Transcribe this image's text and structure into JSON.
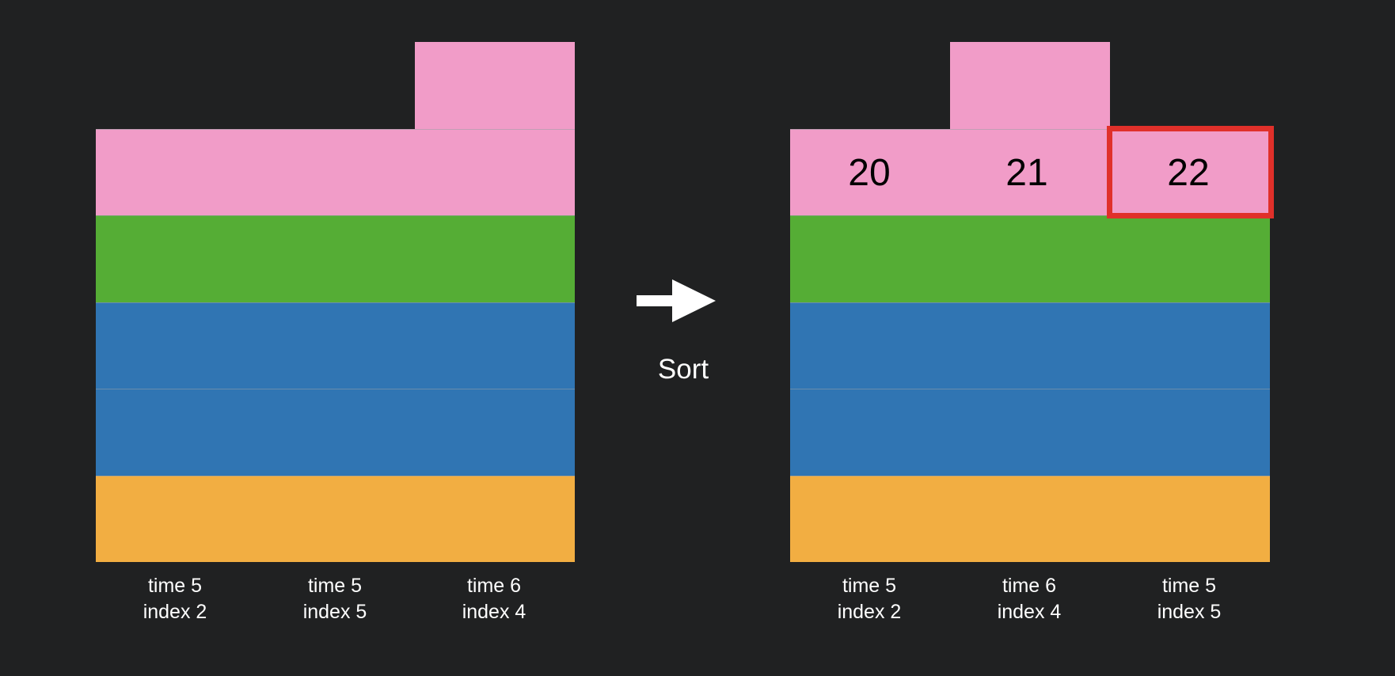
{
  "colors": {
    "background": "#202122",
    "pink": "#f19cc8",
    "green": "#55ad35",
    "blue": "#3075b3",
    "orange": "#f2ae42",
    "highlight": "#e0302a"
  },
  "left_panel": {
    "columns": [
      {
        "time": "time 5",
        "index": "index 2"
      },
      {
        "time": "time 5",
        "index": "index 5"
      },
      {
        "time": "time 6",
        "index": "index 4"
      }
    ]
  },
  "arrow": {
    "label": "Sort",
    "icon": "right-arrow-icon"
  },
  "right_panel": {
    "cell_numbers": [
      "20",
      "21",
      "22"
    ],
    "highlighted": "22",
    "columns": [
      {
        "time": "time 5",
        "index": "index 2"
      },
      {
        "time": "time 6",
        "index": "index 4"
      },
      {
        "time": "time 5",
        "index": "index 5"
      }
    ]
  }
}
